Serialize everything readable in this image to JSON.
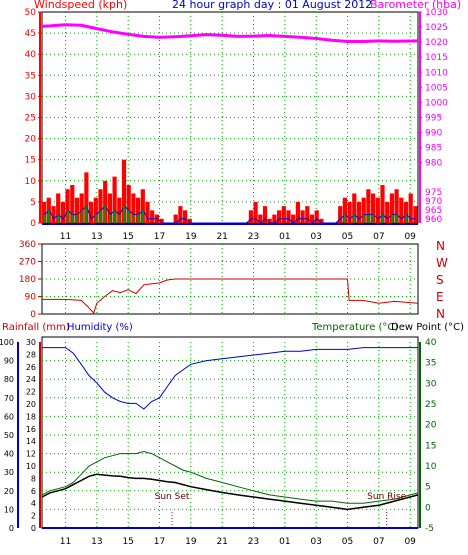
{
  "header": {
    "left_title": "Windspeed (kph)",
    "center_title": "24 hour graph day : 01 August 2012",
    "right_title": "Barometer (hba)"
  },
  "colors": {
    "wind_axis": "#ff0000",
    "baro": "#ff00ff",
    "rain": "#cc0000",
    "humidity": "#0000cc",
    "temperature": "#006600",
    "dewpoint": "#000000",
    "direction": "#cc0000",
    "time_axis": "#0000cc",
    "grid": "#00aa00"
  },
  "time_ticks": [
    "11",
    "13",
    "15",
    "17",
    "19",
    "21",
    "23",
    "01",
    "03",
    "05",
    "07",
    "09"
  ],
  "chart_data": [
    {
      "id": "wind-baro",
      "type": "line",
      "xlabel": "",
      "ylabel_left": "Windspeed (kph)",
      "ylabel_right": "Barometer (hba)",
      "x_hours": [
        9.5,
        10,
        11,
        12,
        13,
        14,
        15,
        16,
        17,
        18,
        19,
        20,
        21,
        22,
        23,
        24,
        25,
        26,
        27,
        28,
        29,
        30,
        31,
        32,
        33.5
      ],
      "left_ticks": [
        0,
        5,
        10,
        15,
        20,
        25,
        30,
        35,
        40,
        45,
        50
      ],
      "right_ticks": [
        980,
        985,
        990,
        995,
        1000,
        1005,
        1010,
        1015,
        1020,
        1025,
        1030
      ],
      "bottom_right_ticks": [
        "960",
        "965",
        "970",
        "975"
      ],
      "ylim_left": [
        0,
        50
      ],
      "ylim_right": [
        960,
        1030
      ],
      "series": [
        {
          "name": "Barometer (hba)",
          "values": [
            1025.3,
            1025.4,
            1025.8,
            1025.6,
            1024.5,
            1023.4,
            1022.6,
            1021.9,
            1021.6,
            1021.8,
            1022.1,
            1022.5,
            1022.3,
            1021.9,
            1022.0,
            1022.2,
            1021.9,
            1021.6,
            1021.2,
            1020.6,
            1020.2,
            1020.2,
            1020.4,
            1020.3,
            1020.4
          ]
        }
      ],
      "wind_gust": [
        5,
        6,
        4,
        7,
        5,
        8,
        9,
        6,
        7,
        12,
        5,
        6,
        8,
        10,
        7,
        11,
        6,
        15,
        9,
        7,
        6,
        8,
        5,
        3,
        2,
        1,
        0,
        0,
        2,
        4,
        3,
        1,
        0,
        0,
        0,
        0,
        0,
        0,
        0,
        0,
        0,
        0,
        0,
        0,
        3,
        5,
        2,
        4,
        1,
        2,
        3,
        4,
        3,
        2,
        5,
        3,
        4,
        2,
        3,
        1,
        0,
        0,
        0,
        4,
        6,
        5,
        7,
        5,
        6,
        8,
        7,
        6,
        9,
        5,
        7,
        8,
        6,
        5,
        7,
        4
      ],
      "wind_avg": [
        2,
        3,
        1,
        2,
        1,
        3,
        2,
        2,
        3,
        4,
        1,
        2,
        3,
        4,
        2,
        3,
        2,
        4,
        3,
        2,
        2,
        3,
        1,
        1,
        1,
        0,
        0,
        0,
        0,
        1,
        1,
        0,
        0,
        0,
        0,
        0,
        0,
        0,
        0,
        0,
        0,
        0,
        0,
        0,
        1,
        1,
        0,
        1,
        0,
        0,
        1,
        1,
        1,
        0,
        1,
        1,
        1,
        0,
        1,
        0,
        0,
        0,
        0,
        1,
        2,
        1,
        2,
        1,
        2,
        2,
        2,
        1,
        2,
        1,
        2,
        2,
        1,
        2,
        1,
        1
      ]
    },
    {
      "id": "direction",
      "type": "line",
      "y_ticks": [
        0,
        90,
        180,
        270,
        360
      ],
      "ylim": [
        0,
        360
      ],
      "compass_labels": [
        "N",
        "W",
        "S",
        "E",
        "N"
      ],
      "x_hours": [
        9.5,
        10,
        11,
        12,
        12.4,
        12.8,
        13,
        13.5,
        14,
        14.5,
        15,
        15.5,
        16,
        17,
        17.5,
        18,
        19,
        20,
        21,
        22,
        23,
        24,
        25,
        26,
        27,
        28,
        29,
        29.1,
        30,
        31,
        32,
        33.5
      ],
      "series": [
        {
          "name": "Wind direction",
          "values": [
            75,
            75,
            75,
            70,
            40,
            5,
            55,
            90,
            120,
            110,
            125,
            105,
            150,
            160,
            175,
            180,
            180,
            180,
            180,
            180,
            180,
            180,
            180,
            180,
            180,
            180,
            180,
            70,
            70,
            55,
            65,
            55
          ]
        }
      ]
    },
    {
      "id": "rain-humidity-temp",
      "type": "line",
      "title_left": "Rainfall (mm)",
      "title_humidity": "Humidity (%)",
      "title_temp": "Temperature (°C)",
      "title_dew": "Dew Point (°C)",
      "humidity_ticks": [
        0,
        10,
        20,
        30,
        40,
        50,
        60,
        70,
        80,
        90,
        100
      ],
      "rain_ticks": [
        0,
        2,
        4,
        6,
        8,
        10,
        12,
        14,
        16,
        18,
        20,
        22,
        24,
        26,
        28,
        30
      ],
      "temp_ticks": [
        -5,
        0,
        5,
        10,
        15,
        20,
        25,
        30,
        35,
        40
      ],
      "ylim_humidity": [
        0,
        100
      ],
      "ylim_temp": [
        -5,
        40
      ],
      "x_hours": [
        9.5,
        10,
        11,
        11.5,
        12,
        12.5,
        13,
        13.5,
        14,
        14.5,
        15,
        15.5,
        16,
        16.5,
        17,
        17.5,
        18,
        18.5,
        19,
        20,
        21,
        22,
        23,
        24,
        25,
        26,
        27,
        28,
        29,
        30,
        31,
        32,
        33.5
      ],
      "series": [
        {
          "name": "Humidity (%)",
          "values": [
            97,
            97,
            97,
            94,
            88,
            82,
            78,
            73,
            70,
            68,
            67,
            67,
            64,
            68,
            70,
            76,
            82,
            85,
            88,
            90,
            91,
            92,
            93,
            94,
            95,
            95,
            96,
            96,
            96,
            97,
            97,
            97,
            97
          ]
        },
        {
          "name": "Temperature (°C)",
          "values": [
            3,
            4,
            5,
            6,
            8,
            10,
            11,
            12,
            12.5,
            13,
            13,
            13,
            13.5,
            13,
            12,
            11,
            10,
            9,
            8.5,
            7,
            6,
            5,
            4,
            3,
            2.5,
            2,
            1.5,
            1.5,
            1,
            1,
            1.5,
            2,
            3.5
          ]
        },
        {
          "name": "Dew Point (°C)",
          "values": [
            2.5,
            3.5,
            4.5,
            5.5,
            6.5,
            7.5,
            8,
            7.8,
            7.6,
            7.5,
            7.2,
            7,
            7,
            6.8,
            6.5,
            6.2,
            6,
            5.5,
            5,
            4.3,
            3.6,
            3,
            2.5,
            2,
            1.5,
            1,
            0.5,
            0,
            -0.5,
            0,
            0.5,
            1.5,
            3
          ]
        },
        {
          "name": "Rainfall (mm)",
          "values": [
            0,
            0,
            0,
            0,
            0,
            0,
            0,
            0,
            0,
            0,
            0,
            0,
            0,
            0,
            0,
            0,
            0,
            0,
            0,
            0,
            0,
            0,
            0,
            0,
            0,
            0,
            0,
            0,
            0,
            0,
            0,
            0,
            0
          ]
        }
      ],
      "annotations": [
        {
          "label": "Sun Set",
          "hour": 17.8
        },
        {
          "label": "Sun Rise",
          "hour": 31.5
        }
      ]
    }
  ]
}
